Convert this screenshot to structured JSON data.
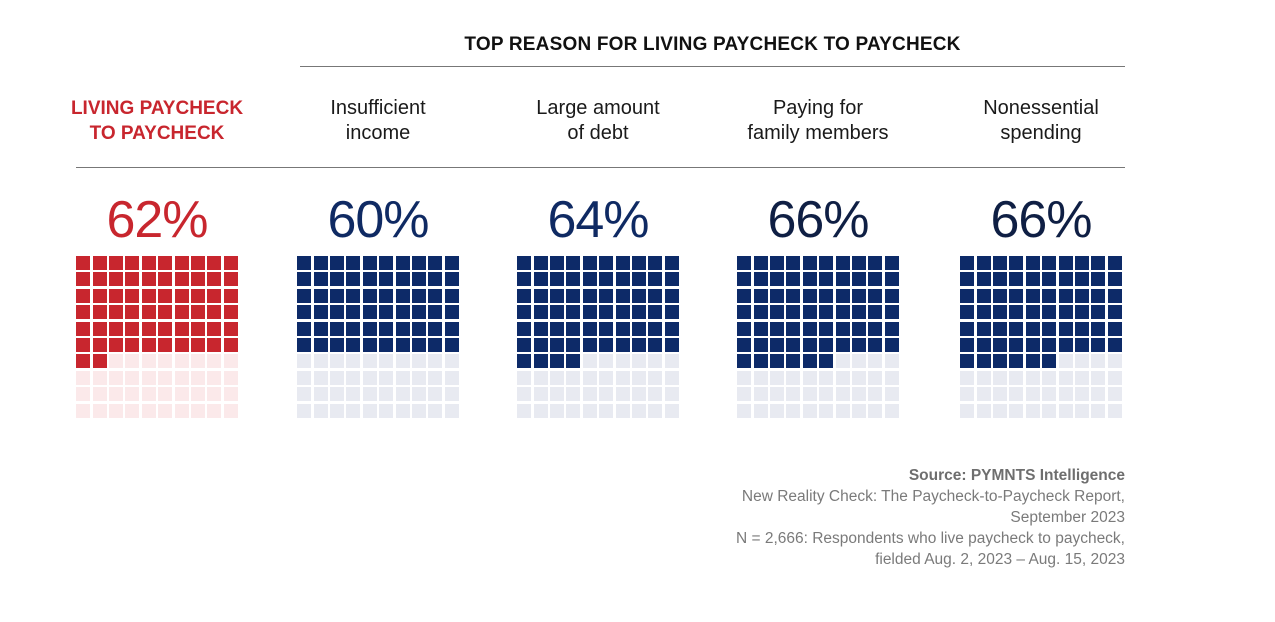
{
  "chart_data": {
    "type": "waffle",
    "title": "TOP REASON FOR LIVING PAYCHECK TO PAYCHECK",
    "grid": {
      "rows": 10,
      "cols": 10
    },
    "series": [
      {
        "name": "LIVING PAYCHECK TO PAYCHECK",
        "label_lines": [
          "LIVING PAYCHECK",
          "TO PAYCHECK"
        ],
        "value": 62,
        "display": "62%",
        "fill": "#c8262e",
        "empty": "#fbe9ea"
      },
      {
        "name": "Insufficient income",
        "label_lines": [
          "Insufficient",
          "income"
        ],
        "value": 60,
        "display": "60%",
        "fill": "#0d2a68",
        "empty": "#e8eaf1"
      },
      {
        "name": "Large amount of debt",
        "label_lines": [
          "Large amount",
          "of debt"
        ],
        "value": 64,
        "display": "64%",
        "fill": "#0d2a68",
        "empty": "#e8eaf1"
      },
      {
        "name": "Paying for family members",
        "label_lines": [
          "Paying for",
          "family members"
        ],
        "value": 66,
        "display": "66%",
        "fill": "#0d2a68",
        "empty": "#e8eaf1"
      },
      {
        "name": "Nonessential spending",
        "label_lines": [
          "Nonessential",
          "spending"
        ],
        "value": 66,
        "display": "66%",
        "fill": "#0d2a68",
        "empty": "#e8eaf1"
      }
    ],
    "pct_colors": [
      "#c8262e",
      "#0f2a63",
      "#0f2a63",
      "#0f1f44",
      "#0f1f44"
    ]
  },
  "source": {
    "title": "Source: PYMNTS Intelligence",
    "line1": "New Reality Check: The Paycheck-to-Paycheck Report,",
    "line2": "September 2023",
    "line3": "N = 2,666: Respondents who live paycheck to paycheck,",
    "line4": "fielded Aug. 2, 2023 – Aug. 15, 2023"
  }
}
